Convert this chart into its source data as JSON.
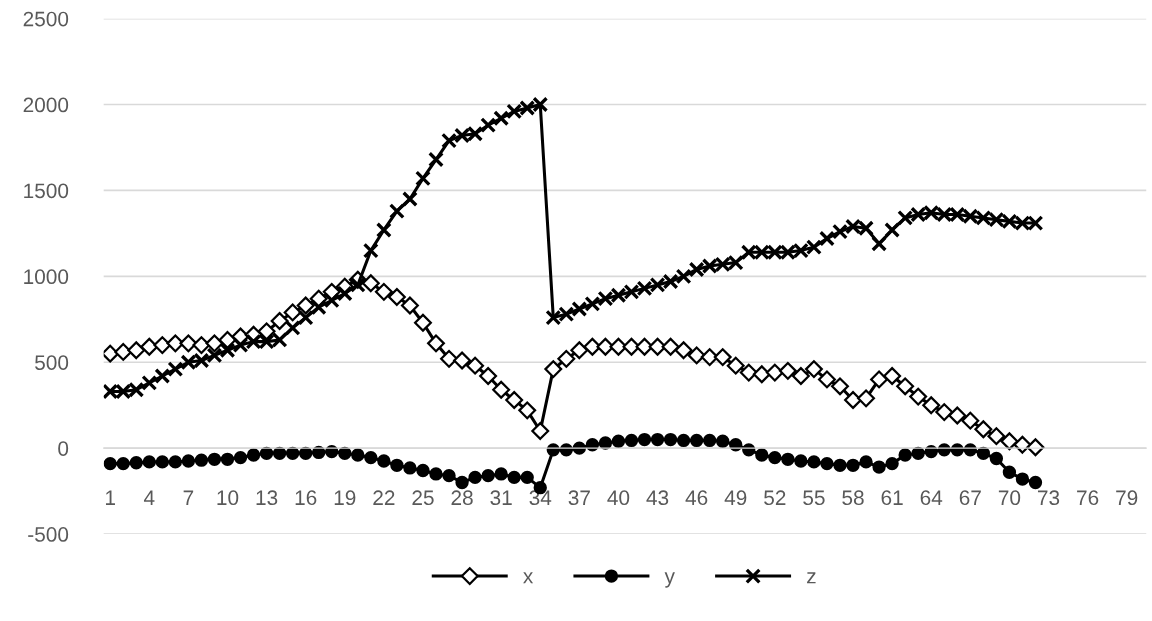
{
  "chart_data": {
    "type": "line",
    "categories": [
      "1",
      null,
      null,
      "4",
      null,
      null,
      "7",
      null,
      null,
      "10",
      null,
      null,
      "13",
      null,
      null,
      "16",
      null,
      null,
      "19",
      null,
      null,
      "22",
      null,
      null,
      "25",
      null,
      null,
      "28",
      null,
      null,
      "31",
      null,
      null,
      "34",
      null,
      null,
      "37",
      null,
      null,
      "40",
      null,
      null,
      "43",
      null,
      null,
      "46",
      null,
      null,
      "49",
      null,
      null,
      "52",
      null,
      null,
      "55",
      null,
      null,
      "58",
      null,
      null,
      "61",
      null,
      null,
      "64",
      null,
      null,
      "67",
      null,
      null,
      "70",
      null,
      null,
      "73",
      null,
      null,
      "76",
      null,
      null,
      "79",
      null
    ],
    "series": [
      {
        "name": "x",
        "color": "#000000",
        "marker": "diamond",
        "values": [
          550,
          560,
          570,
          590,
          600,
          610,
          610,
          600,
          610,
          630,
          650,
          660,
          680,
          740,
          790,
          830,
          870,
          910,
          940,
          980,
          960,
          910,
          880,
          830,
          730,
          610,
          520,
          510,
          480,
          420,
          340,
          280,
          220,
          100,
          460,
          520,
          570,
          590,
          590,
          590,
          590,
          590,
          590,
          590,
          570,
          540,
          530,
          530,
          480,
          440,
          430,
          440,
          450,
          420,
          460,
          400,
          360,
          280,
          290,
          400,
          420,
          360,
          300,
          250,
          210,
          190,
          160,
          110,
          70,
          40,
          20,
          5,
          null,
          null,
          null,
          null,
          null,
          null,
          null,
          null
        ]
      },
      {
        "name": "y",
        "color": "#000000",
        "marker": "circle",
        "values": [
          -90,
          -90,
          -85,
          -80,
          -80,
          -80,
          -75,
          -70,
          -65,
          -65,
          -55,
          -40,
          -30,
          -30,
          -30,
          -30,
          -25,
          -20,
          -30,
          -40,
          -55,
          -75,
          -100,
          -115,
          -130,
          -150,
          -160,
          -200,
          -170,
          -160,
          -150,
          -170,
          -170,
          -230,
          -10,
          -10,
          0,
          20,
          30,
          40,
          45,
          50,
          50,
          50,
          45,
          45,
          45,
          40,
          20,
          -10,
          -40,
          -55,
          -65,
          -75,
          -80,
          -90,
          -100,
          -100,
          -80,
          -110,
          -90,
          -40,
          -30,
          -20,
          -10,
          -10,
          -10,
          -30,
          -60,
          -140,
          -180,
          -200,
          null,
          null,
          null,
          null,
          null,
          null,
          null,
          null
        ]
      },
      {
        "name": "z",
        "color": "#000000",
        "marker": "cross",
        "values": [
          330,
          330,
          340,
          380,
          420,
          460,
          500,
          510,
          540,
          570,
          600,
          620,
          620,
          630,
          700,
          760,
          820,
          860,
          900,
          950,
          1150,
          1270,
          1380,
          1450,
          1570,
          1680,
          1790,
          1820,
          1830,
          1880,
          1920,
          1960,
          1980,
          2000,
          760,
          780,
          810,
          840,
          870,
          890,
          910,
          930,
          950,
          970,
          1000,
          1040,
          1060,
          1070,
          1080,
          1140,
          1140,
          1140,
          1140,
          1150,
          1170,
          1220,
          1260,
          1290,
          1280,
          1190,
          1270,
          1340,
          1360,
          1370,
          1360,
          1360,
          1350,
          1340,
          1330,
          1320,
          1310,
          1310,
          null,
          null,
          null,
          null,
          null,
          null,
          null,
          null
        ]
      }
    ],
    "ylim": [
      -500,
      2500
    ],
    "yticks": [
      -500,
      0,
      500,
      1000,
      1500,
      2000,
      2500
    ],
    "grid": "y",
    "legend": "bottom",
    "line_style": "solid"
  }
}
